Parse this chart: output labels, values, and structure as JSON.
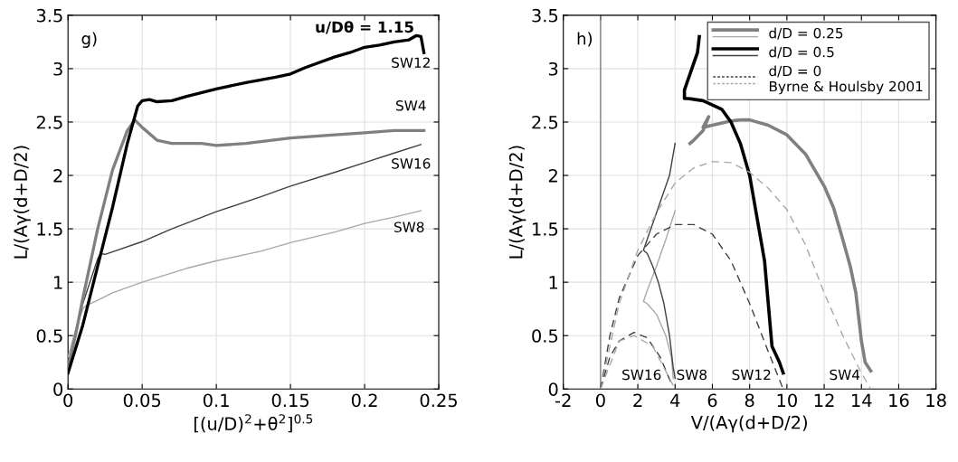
{
  "chart_data": [
    {
      "type": "line",
      "xlabel": "[(u/D)$^{2}$+θ$^{2}$]$^{0.5}$",
      "ylabel": "L/(Aγ(d+D/2)",
      "xlim": [
        0,
        0.25
      ],
      "ylim": [
        0,
        3.5
      ],
      "xticks": [
        0,
        0.05,
        0.1,
        0.15,
        0.2,
        0.25
      ],
      "yticks": [
        0,
        0.5,
        1,
        1.5,
        2,
        2.5,
        3,
        3.5
      ],
      "grid": true,
      "legend": false,
      "annotations": [
        "g)",
        "u/Dθ = 1.15",
        "SW12",
        "SW4",
        "SW16",
        "SW8"
      ],
      "series": [
        {
          "color": "#a8a8a8",
          "x": [
            0,
            0.005,
            0.01,
            0.012,
            0.02,
            0.03,
            0.05,
            0.08,
            0.1,
            0.13,
            0.15,
            0.18,
            0.2,
            0.22,
            0.238
          ],
          "values": [
            0.3,
            0.55,
            0.75,
            0.78,
            0.83,
            0.9,
            1.0,
            1.13,
            1.2,
            1.29,
            1.37,
            1.47,
            1.55,
            1.61,
            1.67
          ]
        },
        {
          "color": "#404040",
          "x": [
            0,
            0.01,
            0.02,
            0.022,
            0.025,
            0.05,
            0.07,
            0.1,
            0.13,
            0.15,
            0.18,
            0.2,
            0.22,
            0.238
          ],
          "values": [
            0.2,
            0.8,
            1.22,
            1.27,
            1.26,
            1.38,
            1.5,
            1.66,
            1.8,
            1.9,
            2.03,
            2.12,
            2.21,
            2.29
          ]
        },
        {
          "color": "#808080",
          "x": [
            0,
            0.005,
            0.01,
            0.02,
            0.03,
            0.04,
            0.045,
            0.05,
            0.06,
            0.07,
            0.09,
            0.1,
            0.12,
            0.15,
            0.18,
            0.2,
            0.22,
            0.24
          ],
          "values": [
            0.2,
            0.5,
            0.85,
            1.5,
            2.05,
            2.42,
            2.52,
            2.45,
            2.33,
            2.3,
            2.3,
            2.28,
            2.3,
            2.35,
            2.38,
            2.4,
            2.42,
            2.42
          ]
        },
        {
          "color": "#000000",
          "x": [
            0,
            0.01,
            0.02,
            0.03,
            0.04,
            0.047,
            0.05,
            0.055,
            0.06,
            0.07,
            0.08,
            0.1,
            0.12,
            0.14,
            0.15,
            0.16,
            0.18,
            0.19,
            0.2,
            0.21,
            0.22,
            0.23,
            0.235,
            0.238,
            0.24
          ],
          "values": [
            0.15,
            0.6,
            1.15,
            1.7,
            2.3,
            2.65,
            2.7,
            2.71,
            2.69,
            2.7,
            2.74,
            2.81,
            2.87,
            2.92,
            2.95,
            3.01,
            3.11,
            3.15,
            3.2,
            3.22,
            3.25,
            3.27,
            3.31,
            3.3,
            3.15
          ]
        }
      ]
    },
    {
      "type": "line",
      "xlabel": "V/(Aγ(d+D/2)",
      "ylabel": "L/(Aγ(d+D/2)",
      "xlim": [
        -2,
        18
      ],
      "ylim": [
        0,
        3.5
      ],
      "xticks": [
        -2,
        0,
        2,
        4,
        6,
        8,
        10,
        12,
        14,
        16,
        18
      ],
      "yticks": [
        0,
        0.5,
        1,
        1.5,
        2,
        2.5,
        3,
        3.5
      ],
      "grid": true,
      "legend": "top right",
      "ref_lines": [
        {
          "axis": "x",
          "value": 0,
          "color": "#808080"
        }
      ],
      "annotations": [
        "h)",
        "SW16",
        "SW8",
        "SW12",
        "SW4"
      ],
      "series": [
        {
          "name": "d/D = 0.25",
          "color": "#808080",
          "x": [
            4.8,
            5.0,
            5.5,
            5.8,
            5.5,
            6.0,
            7.0,
            7.5,
            8.0,
            9.0,
            10.0,
            11.0,
            12.0,
            12.5,
            13.0,
            13.4,
            13.7,
            14.0,
            14.2,
            14.5
          ],
          "values": [
            2.3,
            2.33,
            2.42,
            2.55,
            2.45,
            2.47,
            2.51,
            2.52,
            2.52,
            2.47,
            2.38,
            2.2,
            1.9,
            1.7,
            1.4,
            1.15,
            0.9,
            0.45,
            0.25,
            0.17
          ]
        },
        {
          "color": "#a8a8a8",
          "x": [
            4.0,
            3.5,
            3.0,
            2.5,
            2.3,
            2.5,
            3.0,
            3.5,
            3.8,
            3.9
          ],
          "values": [
            1.67,
            1.4,
            1.15,
            0.92,
            0.82,
            0.8,
            0.7,
            0.5,
            0.3,
            0.1
          ]
        },
        {
          "name": "d/D = 0.5",
          "color": "#000000",
          "x": [
            5.3,
            5.2,
            4.8,
            4.5,
            4.5,
            4.7,
            5.5,
            6.5,
            7.0,
            7.5,
            8.0,
            8.4,
            8.8,
            9.0,
            9.2,
            9.6,
            9.8
          ],
          "values": [
            3.3,
            3.15,
            2.95,
            2.8,
            2.72,
            2.72,
            2.7,
            2.62,
            2.5,
            2.3,
            2.0,
            1.6,
            1.2,
            0.8,
            0.4,
            0.25,
            0.15
          ]
        },
        {
          "color": "#404040",
          "x": [
            4.0,
            3.7,
            3.2,
            2.8,
            2.5,
            2.3,
            2.5,
            2.8,
            3.1,
            3.4,
            3.7,
            3.9,
            4.0
          ],
          "values": [
            2.3,
            2.0,
            1.75,
            1.55,
            1.4,
            1.3,
            1.27,
            1.15,
            1.0,
            0.8,
            0.5,
            0.2,
            0.1
          ]
        },
        {
          "name": "d/D = 0\nByrne & Houlsby 2001",
          "color": "#404040",
          "line_style": "dashed",
          "x": [
            0,
            0.5,
            1,
            2,
            3,
            4,
            5,
            6,
            7,
            8,
            9,
            9.8
          ],
          "values": [
            0,
            0.5,
            0.85,
            1.25,
            1.45,
            1.54,
            1.54,
            1.45,
            1.2,
            0.8,
            0.35,
            0
          ]
        },
        {
          "color": "#a8a8a8",
          "line_style": "dashed",
          "x": [
            0,
            1,
            2,
            3,
            4,
            5,
            6,
            7,
            8,
            9,
            10,
            11,
            12,
            13,
            14,
            14.5
          ],
          "values": [
            0,
            0.8,
            1.3,
            1.65,
            1.93,
            2.07,
            2.13,
            2.12,
            2.03,
            1.88,
            1.68,
            1.35,
            0.9,
            0.5,
            0.15,
            0
          ]
        },
        {
          "color": "#404040",
          "line_style": "dashed",
          "x": [
            0,
            0.5,
            1,
            1.8,
            2.5,
            3.2,
            3.8
          ],
          "values": [
            0,
            0.3,
            0.45,
            0.53,
            0.48,
            0.3,
            0.05
          ]
        },
        {
          "color": "#a8a8a8",
          "line_style": "dashed",
          "x": [
            0,
            1,
            1.8,
            2.8,
            3.7,
            4.0
          ],
          "values": [
            0,
            0.45,
            0.5,
            0.4,
            0.1,
            0
          ]
        }
      ]
    }
  ]
}
